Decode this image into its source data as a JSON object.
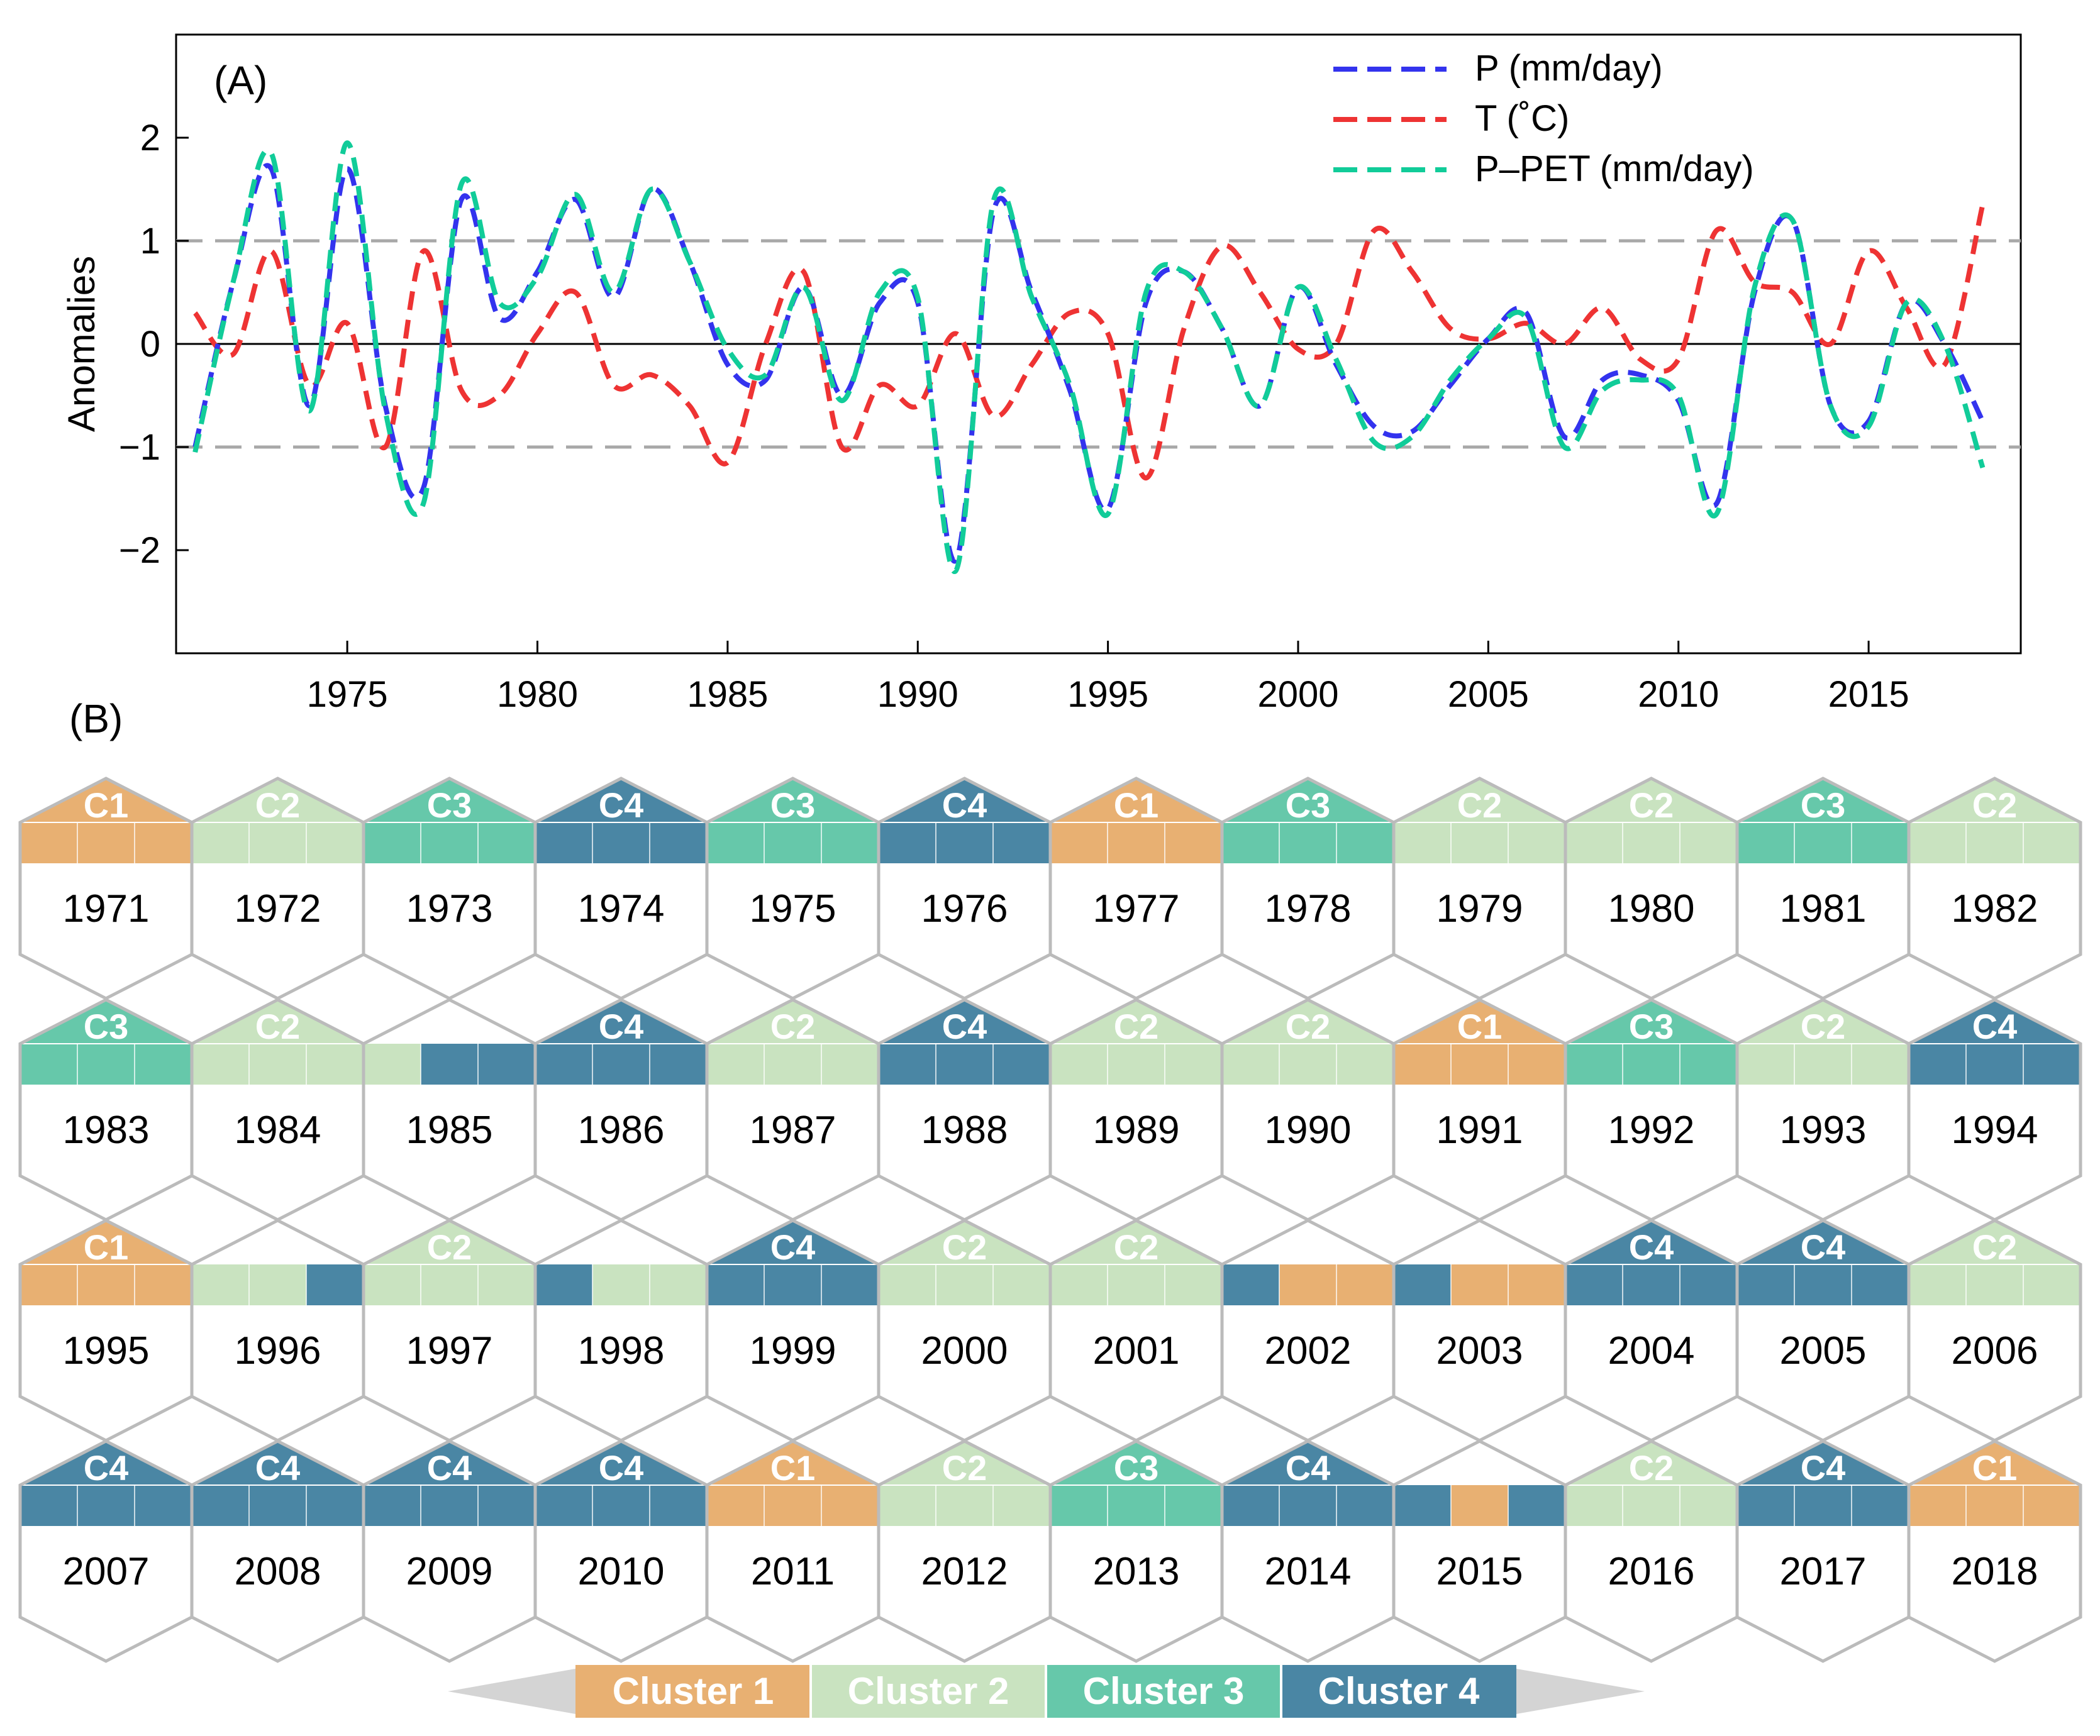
{
  "colors": {
    "p": "#3333ee",
    "t": "#ee3333",
    "ppet": "#11cc99",
    "cluster": {
      "C1": "#e8b072",
      "C2": "#c9e3c0",
      "C3": "#66c8aa",
      "C4": "#4a86a4"
    },
    "hex_border": "#bbbbbb",
    "ref_line": "#a8a8a8",
    "arrow": "#d4d4d4"
  },
  "chart_data": {
    "type": "line",
    "panel_label": "(A)",
    "ylabel": "Anomalies",
    "xlabel": "",
    "xlim": [
      1970.5,
      2019
    ],
    "ylim": [
      -3,
      3
    ],
    "x_ticks": [
      1975,
      1980,
      1985,
      1990,
      1995,
      2000,
      2005,
      2010,
      2015
    ],
    "y_ticks": [
      -2,
      -1,
      0,
      1,
      2
    ],
    "y_tick_labels": [
      "−2",
      "−1",
      "0",
      "1",
      "2"
    ],
    "reference_lines": [
      -1,
      0,
      1
    ],
    "legend": "top-right",
    "x": [
      1971,
      1972,
      1973,
      1974,
      1975,
      1976,
      1977,
      1978,
      1979,
      1980,
      1981,
      1982,
      1983,
      1984,
      1985,
      1986,
      1987,
      1988,
      1989,
      1990,
      1991,
      1992,
      1993,
      1994,
      1995,
      1996,
      1997,
      1998,
      1999,
      2000,
      2001,
      2002,
      2003,
      2004,
      2005,
      2006,
      2007,
      2008,
      2009,
      2010,
      2011,
      2012,
      2013,
      2014,
      2015,
      2016,
      2017,
      2018
    ],
    "series": [
      {
        "name": "P (mm/day)",
        "key": "p",
        "values": [
          -1.0,
          0.6,
          1.7,
          -0.6,
          1.7,
          -0.6,
          -1.4,
          1.4,
          0.25,
          0.7,
          1.4,
          0.45,
          1.5,
          0.8,
          -0.2,
          -0.35,
          0.55,
          -0.5,
          0.4,
          0.4,
          -2.1,
          1.3,
          0.5,
          -0.45,
          -1.6,
          0.4,
          0.7,
          0.15,
          -0.6,
          0.55,
          -0.2,
          -0.8,
          -0.85,
          -0.4,
          0.05,
          0.3,
          -0.9,
          -0.35,
          -0.3,
          -0.55,
          -1.55,
          0.5,
          1.2,
          -0.6,
          -0.75,
          0.4,
          0.0,
          -0.75
        ]
      },
      {
        "name": "T (˚C)",
        "key": "t",
        "values": [
          0.3,
          -0.1,
          0.9,
          -0.4,
          0.2,
          -1.0,
          0.9,
          -0.45,
          -0.5,
          0.1,
          0.5,
          -0.4,
          -0.3,
          -0.6,
          -1.15,
          0.0,
          0.7,
          -1.0,
          -0.4,
          -0.6,
          0.1,
          -0.7,
          -0.2,
          0.3,
          0.1,
          -1.3,
          0.15,
          0.95,
          0.5,
          -0.05,
          0.0,
          1.1,
          0.7,
          0.15,
          0.05,
          0.2,
          0.0,
          0.35,
          -0.15,
          -0.15,
          1.1,
          0.6,
          0.5,
          0.0,
          0.9,
          0.35,
          -0.2,
          1.35
        ]
      },
      {
        "name": "P–PET (mm/day)",
        "key": "ppet",
        "values": [
          -1.05,
          0.6,
          1.85,
          -0.65,
          1.95,
          -0.65,
          -1.55,
          1.55,
          0.4,
          0.65,
          1.45,
          0.5,
          1.5,
          0.8,
          -0.05,
          -0.3,
          0.55,
          -0.55,
          0.5,
          0.45,
          -2.2,
          1.4,
          0.45,
          -0.4,
          -1.65,
          0.5,
          0.7,
          0.15,
          -0.6,
          0.55,
          -0.15,
          -0.95,
          -0.9,
          -0.35,
          0.05,
          0.25,
          -1.0,
          -0.45,
          -0.35,
          -0.5,
          -1.65,
          0.55,
          1.2,
          -0.6,
          -0.8,
          0.4,
          0.0,
          -1.2
        ]
      }
    ]
  },
  "panel_b": {
    "label": "(B)",
    "years": [
      {
        "year": "1971",
        "label": "C1",
        "cluster": "C1",
        "bar": [
          "C1",
          "C1",
          "C1"
        ]
      },
      {
        "year": "1972",
        "label": "C2",
        "cluster": "C2",
        "bar": [
          "C2",
          "C2",
          "C2"
        ]
      },
      {
        "year": "1973",
        "label": "C3",
        "cluster": "C3",
        "bar": [
          "C3",
          "C3",
          "C3"
        ]
      },
      {
        "year": "1974",
        "label": "C4",
        "cluster": "C4",
        "bar": [
          "C4",
          "C4",
          "C4"
        ]
      },
      {
        "year": "1975",
        "label": "C3",
        "cluster": "C3",
        "bar": [
          "C3",
          "C3",
          "C3"
        ]
      },
      {
        "year": "1976",
        "label": "C4",
        "cluster": "C4",
        "bar": [
          "C4",
          "C4",
          "C4"
        ]
      },
      {
        "year": "1977",
        "label": "C1",
        "cluster": "C1",
        "bar": [
          "C1",
          "C1",
          "C1"
        ]
      },
      {
        "year": "1978",
        "label": "C3",
        "cluster": "C3",
        "bar": [
          "C3",
          "C3",
          "C3"
        ]
      },
      {
        "year": "1979",
        "label": "C2",
        "cluster": "C2",
        "bar": [
          "C2",
          "C2",
          "C2"
        ]
      },
      {
        "year": "1980",
        "label": "C2",
        "cluster": "C2",
        "bar": [
          "C2",
          "C2",
          "C2"
        ]
      },
      {
        "year": "1981",
        "label": "C3",
        "cluster": "C3",
        "bar": [
          "C3",
          "C3",
          "C3"
        ]
      },
      {
        "year": "1982",
        "label": "C2",
        "cluster": "C2",
        "bar": [
          "C2",
          "C2",
          "C2"
        ]
      },
      {
        "year": "1983",
        "label": "C3",
        "cluster": "C3",
        "bar": [
          "C3",
          "C3",
          "C3"
        ]
      },
      {
        "year": "1984",
        "label": "C2",
        "cluster": "C2",
        "bar": [
          "C2",
          "C2",
          "C2"
        ]
      },
      {
        "year": "1985",
        "label": "",
        "cluster": null,
        "bar": [
          "C2",
          "C4",
          "C4"
        ]
      },
      {
        "year": "1986",
        "label": "C4",
        "cluster": "C4",
        "bar": [
          "C4",
          "C4",
          "C4"
        ]
      },
      {
        "year": "1987",
        "label": "C2",
        "cluster": "C2",
        "bar": [
          "C2",
          "C2",
          "C2"
        ]
      },
      {
        "year": "1988",
        "label": "C4",
        "cluster": "C4",
        "bar": [
          "C4",
          "C4",
          "C4"
        ]
      },
      {
        "year": "1989",
        "label": "C2",
        "cluster": "C2",
        "bar": [
          "C2",
          "C2",
          "C2"
        ]
      },
      {
        "year": "1990",
        "label": "C2",
        "cluster": "C2",
        "bar": [
          "C2",
          "C2",
          "C2"
        ]
      },
      {
        "year": "1991",
        "label": "C1",
        "cluster": "C1",
        "bar": [
          "C1",
          "C1",
          "C1"
        ]
      },
      {
        "year": "1992",
        "label": "C3",
        "cluster": "C3",
        "bar": [
          "C3",
          "C3",
          "C3"
        ]
      },
      {
        "year": "1993",
        "label": "C2",
        "cluster": "C2",
        "bar": [
          "C2",
          "C2",
          "C2"
        ]
      },
      {
        "year": "1994",
        "label": "C4",
        "cluster": "C4",
        "bar": [
          "C4",
          "C4",
          "C4"
        ]
      },
      {
        "year": "1995",
        "label": "C1",
        "cluster": "C1",
        "bar": [
          "C1",
          "C1",
          "C1"
        ]
      },
      {
        "year": "1996",
        "label": "",
        "cluster": null,
        "bar": [
          "C2",
          "C2",
          "C4"
        ]
      },
      {
        "year": "1997",
        "label": "C2",
        "cluster": "C2",
        "bar": [
          "C2",
          "C2",
          "C2"
        ]
      },
      {
        "year": "1998",
        "label": "",
        "cluster": null,
        "bar": [
          "C4",
          "C2",
          "C2"
        ]
      },
      {
        "year": "1999",
        "label": "C4",
        "cluster": "C4",
        "bar": [
          "C4",
          "C4",
          "C4"
        ]
      },
      {
        "year": "2000",
        "label": "C2",
        "cluster": "C2",
        "bar": [
          "C2",
          "C2",
          "C2"
        ]
      },
      {
        "year": "2001",
        "label": "C2",
        "cluster": "C2",
        "bar": [
          "C2",
          "C2",
          "C2"
        ]
      },
      {
        "year": "2002",
        "label": "",
        "cluster": null,
        "bar": [
          "C4",
          "C1",
          "C1"
        ]
      },
      {
        "year": "2003",
        "label": "",
        "cluster": null,
        "bar": [
          "C4",
          "C1",
          "C1"
        ]
      },
      {
        "year": "2004",
        "label": "C4",
        "cluster": "C4",
        "bar": [
          "C4",
          "C4",
          "C4"
        ]
      },
      {
        "year": "2005",
        "label": "C4",
        "cluster": "C4",
        "bar": [
          "C4",
          "C4",
          "C4"
        ]
      },
      {
        "year": "2006",
        "label": "C2",
        "cluster": "C2",
        "bar": [
          "C2",
          "C2",
          "C2"
        ]
      },
      {
        "year": "2007",
        "label": "C4",
        "cluster": "C4",
        "bar": [
          "C4",
          "C4",
          "C4"
        ]
      },
      {
        "year": "2008",
        "label": "C4",
        "cluster": "C4",
        "bar": [
          "C4",
          "C4",
          "C4"
        ]
      },
      {
        "year": "2009",
        "label": "C4",
        "cluster": "C4",
        "bar": [
          "C4",
          "C4",
          "C4"
        ]
      },
      {
        "year": "2010",
        "label": "C4",
        "cluster": "C4",
        "bar": [
          "C4",
          "C4",
          "C4"
        ]
      },
      {
        "year": "2011",
        "label": "C1",
        "cluster": "C1",
        "bar": [
          "C1",
          "C1",
          "C1"
        ]
      },
      {
        "year": "2012",
        "label": "C2",
        "cluster": "C2",
        "bar": [
          "C2",
          "C2",
          "C2"
        ]
      },
      {
        "year": "2013",
        "label": "C3",
        "cluster": "C3",
        "bar": [
          "C3",
          "C3",
          "C3"
        ]
      },
      {
        "year": "2014",
        "label": "C4",
        "cluster": "C4",
        "bar": [
          "C4",
          "C4",
          "C4"
        ]
      },
      {
        "year": "2015",
        "label": "",
        "cluster": null,
        "bar": [
          "C4",
          "C1",
          "C4"
        ]
      },
      {
        "year": "2016",
        "label": "C2",
        "cluster": "C2",
        "bar": [
          "C2",
          "C2",
          "C2"
        ]
      },
      {
        "year": "2017",
        "label": "C4",
        "cluster": "C4",
        "bar": [
          "C4",
          "C4",
          "C4"
        ]
      },
      {
        "year": "2018",
        "label": "C1",
        "cluster": "C1",
        "bar": [
          "C1",
          "C1",
          "C1"
        ]
      }
    ],
    "legend": [
      {
        "key": "C1",
        "label": "Cluster 1"
      },
      {
        "key": "C2",
        "label": "Cluster 2"
      },
      {
        "key": "C3",
        "label": "Cluster 3"
      },
      {
        "key": "C4",
        "label": "Cluster 4"
      }
    ]
  }
}
